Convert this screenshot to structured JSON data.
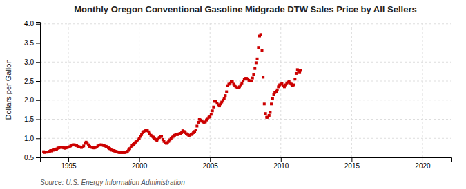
{
  "chart_data": {
    "type": "scatter",
    "title": "Monthly Oregon Conventional Gasoline Midgrade DTW Sales Price by All Sellers",
    "ylabel": "Dollars per Gallon",
    "source": "Source: U.S. Energy Information Administration",
    "color": "#cc0000",
    "marker": "square",
    "grid": true,
    "xlim": [
      1993.0,
      2022.0
    ],
    "ylim": [
      0.5,
      4.05
    ],
    "xticks": [
      1995,
      2000,
      2005,
      2010,
      2015,
      2020
    ],
    "yticks": [
      0.5,
      {
        "value": 1.0,
        "label": "1.0"
      },
      1.5,
      {
        "value": 2.0,
        "label": "2.0"
      },
      2.5,
      {
        "value": 3.0,
        "label": "3.0"
      },
      3.5,
      {
        "value": 4.0,
        "label": "4.0"
      }
    ],
    "x": [
      1993.25,
      1993.33,
      1993.5,
      1993.67,
      1993.75,
      1993.83,
      1993.92,
      1994.0,
      1994.08,
      1994.17,
      1994.25,
      1994.33,
      1994.42,
      1994.5,
      1994.58,
      1994.67,
      1994.75,
      1994.83,
      1994.92,
      1995.0,
      1995.08,
      1995.17,
      1995.25,
      1995.33,
      1995.42,
      1995.5,
      1995.58,
      1995.67,
      1995.75,
      1995.83,
      1995.92,
      1996.0,
      1996.08,
      1996.17,
      1996.25,
      1996.33,
      1996.42,
      1996.5,
      1996.58,
      1996.67,
      1996.75,
      1996.83,
      1996.92,
      1997.0,
      1997.08,
      1997.17,
      1997.25,
      1997.33,
      1997.42,
      1997.5,
      1997.58,
      1997.67,
      1997.75,
      1997.83,
      1997.92,
      1998.0,
      1998.08,
      1998.17,
      1998.25,
      1998.33,
      1998.42,
      1998.5,
      1998.58,
      1998.67,
      1998.75,
      1998.83,
      1998.92,
      1999.0,
      1999.08,
      1999.17,
      1999.25,
      1999.33,
      1999.42,
      1999.5,
      1999.58,
      1999.67,
      1999.75,
      1999.83,
      1999.92,
      2000.0,
      2000.08,
      2000.17,
      2000.25,
      2000.33,
      2000.42,
      2000.5,
      2000.58,
      2000.67,
      2000.75,
      2000.83,
      2000.92,
      2001.0,
      2001.08,
      2001.17,
      2001.25,
      2001.33,
      2001.42,
      2001.5,
      2001.58,
      2001.67,
      2001.75,
      2001.83,
      2001.92,
      2002.0,
      2002.08,
      2002.17,
      2002.25,
      2002.33,
      2002.42,
      2002.5,
      2002.58,
      2002.67,
      2002.75,
      2002.83,
      2002.92,
      2003.0,
      2003.08,
      2003.17,
      2003.25,
      2003.33,
      2003.42,
      2003.5,
      2003.58,
      2003.67,
      2003.75,
      2003.83,
      2003.92,
      2004.0,
      2004.08,
      2004.17,
      2004.25,
      2004.33,
      2004.42,
      2004.5,
      2004.58,
      2004.67,
      2004.75,
      2004.83,
      2004.92,
      2005.0,
      2005.08,
      2005.17,
      2005.25,
      2005.33,
      2005.42,
      2005.5,
      2005.58,
      2005.67,
      2005.75,
      2005.83,
      2005.92,
      2006.0,
      2006.08,
      2006.17,
      2006.25,
      2006.33,
      2006.42,
      2006.5,
      2006.58,
      2006.67,
      2006.75,
      2006.83,
      2006.92,
      2007.0,
      2007.08,
      2007.17,
      2007.25,
      2007.33,
      2007.42,
      2007.5,
      2007.58,
      2007.67,
      2007.75,
      2007.83,
      2007.92,
      2008.0,
      2008.08,
      2008.17,
      2008.25,
      2008.33,
      2008.42,
      2008.5,
      2008.58,
      2008.67,
      2008.75,
      2008.83,
      2008.92,
      2009.0,
      2009.08,
      2009.17,
      2009.25,
      2009.33,
      2009.42,
      2009.5,
      2009.58,
      2009.67,
      2009.75,
      2009.83,
      2009.92,
      2010.0,
      2010.08,
      2010.17,
      2010.25,
      2010.33,
      2010.42,
      2010.5,
      2010.58,
      2010.67,
      2010.75,
      2010.83,
      2010.92,
      2011.0,
      2011.08,
      2011.17,
      2011.25,
      2011.33,
      2011.42
    ],
    "values": [
      0.65,
      0.63,
      0.64,
      0.66,
      0.68,
      0.67,
      0.69,
      0.7,
      0.71,
      0.72,
      0.74,
      0.75,
      0.76,
      0.77,
      0.76,
      0.75,
      0.74,
      0.75,
      0.76,
      0.77,
      0.78,
      0.8,
      0.82,
      0.83,
      0.83,
      0.82,
      0.81,
      0.79,
      0.78,
      0.77,
      0.76,
      0.77,
      0.8,
      0.87,
      0.9,
      0.87,
      0.83,
      0.79,
      0.77,
      0.76,
      0.75,
      0.75,
      0.76,
      0.77,
      0.8,
      0.82,
      0.83,
      0.83,
      0.82,
      0.81,
      0.8,
      0.79,
      0.77,
      0.75,
      0.73,
      0.71,
      0.69,
      0.68,
      0.67,
      0.66,
      0.65,
      0.64,
      0.63,
      0.63,
      0.63,
      0.63,
      0.63,
      0.63,
      0.64,
      0.66,
      0.69,
      0.73,
      0.77,
      0.81,
      0.84,
      0.87,
      0.9,
      0.93,
      0.96,
      1.0,
      1.05,
      1.1,
      1.15,
      1.18,
      1.2,
      1.22,
      1.2,
      1.17,
      1.12,
      1.08,
      1.05,
      1.03,
      1.0,
      0.97,
      0.95,
      0.98,
      1.02,
      1.05,
      1.05,
      0.97,
      0.92,
      0.88,
      0.87,
      0.89,
      0.92,
      0.96,
      1.0,
      1.03,
      1.05,
      1.08,
      1.1,
      1.1,
      1.1,
      1.12,
      1.13,
      1.15,
      1.2,
      1.18,
      1.15,
      1.12,
      1.1,
      1.08,
      1.08,
      1.1,
      1.12,
      1.15,
      1.18,
      1.22,
      1.32,
      1.42,
      1.5,
      1.48,
      1.45,
      1.43,
      1.42,
      1.43,
      1.48,
      1.52,
      1.55,
      1.58,
      1.63,
      1.72,
      1.82,
      1.97,
      1.97,
      1.92,
      1.88,
      1.85,
      1.9,
      1.95,
      2.0,
      2.05,
      2.12,
      2.22,
      2.38,
      2.42,
      2.45,
      2.5,
      2.48,
      2.42,
      2.38,
      2.35,
      2.33,
      2.32,
      2.35,
      2.4,
      2.45,
      2.5,
      2.55,
      2.57,
      2.57,
      2.55,
      2.52,
      2.5,
      2.5,
      2.58,
      2.68,
      2.83,
      2.98,
      3.08,
      3.38,
      3.68,
      3.72,
      3.3,
      2.6,
      1.9,
      1.65,
      1.55,
      1.55,
      1.6,
      1.68,
      1.9,
      2.05,
      2.15,
      2.2,
      2.23,
      2.27,
      2.35,
      2.4,
      2.42,
      2.43,
      2.38,
      2.35,
      2.4,
      2.45,
      2.47,
      2.5,
      2.45,
      2.42,
      2.38,
      2.4,
      2.55,
      2.7,
      2.8,
      2.77,
      2.74,
      2.78
    ]
  }
}
